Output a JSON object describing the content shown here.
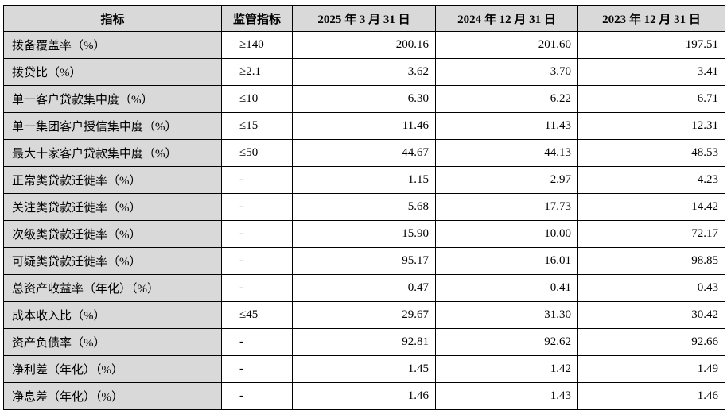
{
  "table": {
    "headers": [
      "指标",
      "监管指标",
      "2025 年 3 月 31 日",
      "2024 年 12 月 31 日",
      "2023 年 12 月 31 日"
    ],
    "rows": [
      {
        "name": "拨备覆盖率（%）",
        "regulatory": "≥140",
        "v2025q1": "200.16",
        "v2024": "201.60",
        "v2023": "197.51"
      },
      {
        "name": "拨贷比（%）",
        "regulatory": "≥2.1",
        "v2025q1": "3.62",
        "v2024": "3.70",
        "v2023": "3.41"
      },
      {
        "name": "单一客户贷款集中度（%）",
        "regulatory": "≤10",
        "v2025q1": "6.30",
        "v2024": "6.22",
        "v2023": "6.71"
      },
      {
        "name": "单一集团客户授信集中度（%）",
        "regulatory": "≤15",
        "v2025q1": "11.46",
        "v2024": "11.43",
        "v2023": "12.31"
      },
      {
        "name": "最大十家客户贷款集中度（%）",
        "regulatory": "≤50",
        "v2025q1": "44.67",
        "v2024": "44.13",
        "v2023": "48.53"
      },
      {
        "name": "正常类贷款迁徙率（%）",
        "regulatory": "-",
        "v2025q1": "1.15",
        "v2024": "2.97",
        "v2023": "4.23"
      },
      {
        "name": "关注类贷款迁徙率（%）",
        "regulatory": "-",
        "v2025q1": "5.68",
        "v2024": "17.73",
        "v2023": "14.42"
      },
      {
        "name": "次级类贷款迁徙率（%）",
        "regulatory": "-",
        "v2025q1": "15.90",
        "v2024": "10.00",
        "v2023": "72.17"
      },
      {
        "name": "可疑类贷款迁徙率（%）",
        "regulatory": "-",
        "v2025q1": "95.17",
        "v2024": "16.01",
        "v2023": "98.85"
      },
      {
        "name": "总资产收益率（年化）（%）",
        "regulatory": "-",
        "v2025q1": "0.47",
        "v2024": "0.41",
        "v2023": "0.43"
      },
      {
        "name": "成本收入比（%）",
        "regulatory": "≤45",
        "v2025q1": "29.67",
        "v2024": "31.30",
        "v2023": "30.42"
      },
      {
        "name": "资产负债率（%）",
        "regulatory": "-",
        "v2025q1": "92.81",
        "v2024": "92.62",
        "v2023": "92.66"
      },
      {
        "name": "净利差（年化）（%）",
        "regulatory": "-",
        "v2025q1": "1.45",
        "v2024": "1.42",
        "v2023": "1.49"
      },
      {
        "name": "净息差（年化）（%）",
        "regulatory": "-",
        "v2025q1": "1.46",
        "v2024": "1.43",
        "v2023": "1.46"
      }
    ]
  }
}
